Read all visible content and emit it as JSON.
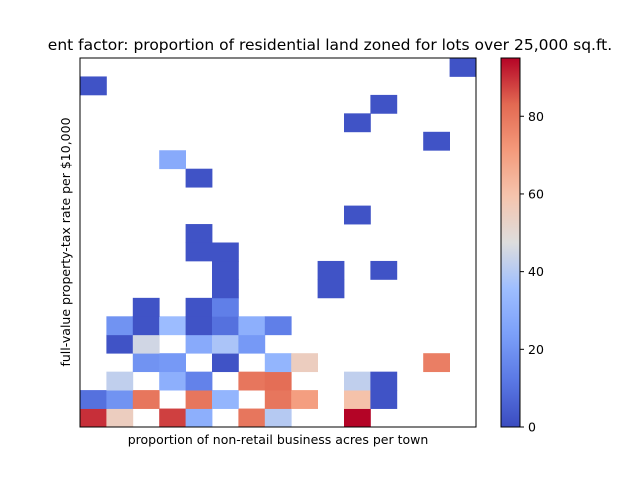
{
  "chart_data": {
    "type": "heatmap",
    "title": "ent factor: proportion of residential land zoned for lots over 25,000 sq.ft.",
    "xlabel": "proportion of non-retail business acres per town",
    "ylabel": "full-value property-tax rate per $10,000",
    "x_ticks_visible": false,
    "y_ticks_visible": false,
    "grid": false,
    "colormap": "coolwarm",
    "colorbar": {
      "position": "right",
      "vmin": 0,
      "vmax": 95,
      "ticks": [
        0,
        20,
        40,
        60,
        80
      ],
      "tick_labels": [
        "0",
        "20",
        "40",
        "60",
        "80"
      ]
    },
    "n_cols": 15,
    "n_rows": 20,
    "cells_row0_is_bottom": [
      [
        0,
        0,
        90
      ],
      [
        1,
        0,
        55
      ],
      [
        3,
        0,
        88
      ],
      [
        4,
        0,
        30
      ],
      [
        6,
        0,
        80
      ],
      [
        7,
        0,
        40
      ],
      [
        10,
        0,
        95
      ],
      [
        0,
        1,
        10
      ],
      [
        1,
        1,
        20
      ],
      [
        2,
        1,
        80
      ],
      [
        4,
        1,
        80
      ],
      [
        5,
        1,
        32
      ],
      [
        7,
        1,
        80
      ],
      [
        8,
        1,
        70
      ],
      [
        10,
        1,
        60
      ],
      [
        11,
        1,
        2
      ],
      [
        1,
        2,
        42
      ],
      [
        3,
        2,
        30
      ],
      [
        4,
        2,
        15
      ],
      [
        6,
        2,
        80
      ],
      [
        7,
        2,
        82
      ],
      [
        10,
        2,
        42
      ],
      [
        11,
        2,
        2
      ],
      [
        2,
        3,
        20
      ],
      [
        3,
        3,
        22
      ],
      [
        5,
        3,
        2
      ],
      [
        7,
        3,
        32
      ],
      [
        8,
        3,
        55
      ],
      [
        13,
        3,
        78
      ],
      [
        1,
        4,
        2
      ],
      [
        2,
        4,
        45
      ],
      [
        4,
        4,
        28
      ],
      [
        5,
        4,
        38
      ],
      [
        6,
        4,
        22
      ],
      [
        1,
        5,
        20
      ],
      [
        2,
        5,
        2
      ],
      [
        3,
        5,
        35
      ],
      [
        4,
        5,
        2
      ],
      [
        5,
        5,
        10
      ],
      [
        6,
        5,
        30
      ],
      [
        7,
        5,
        14
      ],
      [
        2,
        6,
        2
      ],
      [
        4,
        6,
        2
      ],
      [
        5,
        6,
        14
      ],
      [
        5,
        7,
        2
      ],
      [
        9,
        7,
        2
      ],
      [
        5,
        8,
        2
      ],
      [
        9,
        8,
        2
      ],
      [
        11,
        8,
        2
      ],
      [
        4,
        9,
        2
      ],
      [
        5,
        9,
        2
      ],
      [
        4,
        10,
        2
      ],
      [
        10,
        11,
        2
      ],
      [
        4,
        13,
        2
      ],
      [
        3,
        14,
        28
      ],
      [
        13,
        15,
        2
      ],
      [
        10,
        16,
        2
      ],
      [
        11,
        17,
        2
      ],
      [
        0,
        18,
        2
      ],
      [
        14,
        19,
        2
      ]
    ]
  }
}
